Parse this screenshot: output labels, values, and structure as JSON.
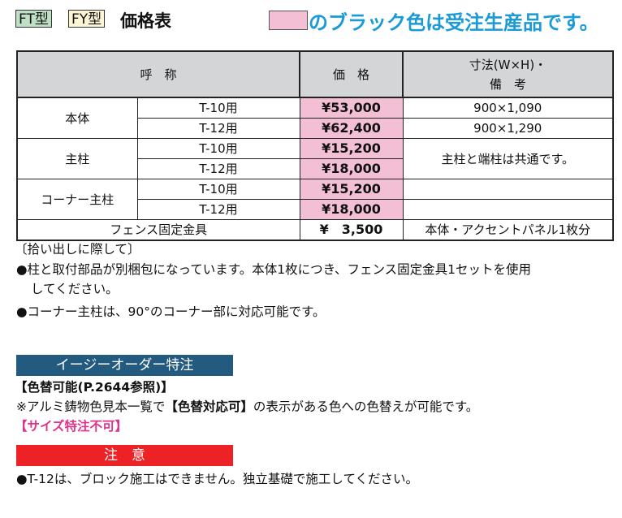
{
  "title": {
    "ft": "FT型",
    "fy": "FY型",
    "main": "価格表",
    "note": "のブラック色は受注生産品です。",
    "pink": "#f2bfd5",
    "blue": "#1a9ad6"
  },
  "table": {
    "headers": {
      "name": "呼　称",
      "price": "価　格",
      "notes1": "寸法(W×H)・",
      "notes2": "備　考"
    },
    "rows": [
      {
        "group": "本体",
        "type": "T-10用",
        "price": "¥53,000",
        "note": "900×1,090"
      },
      {
        "type": "T-12用",
        "price": "¥62,400",
        "note": "900×1,290"
      },
      {
        "group": "主柱",
        "type": "T-10用",
        "price": "¥15,200",
        "note": "主柱と端柱は共通です。"
      },
      {
        "type": "T-12用",
        "price": "¥18,000"
      },
      {
        "group": "コーナー主柱",
        "type": "T-10用",
        "price": "¥15,200",
        "note": ""
      },
      {
        "type": "T-12用",
        "price": "¥18,000",
        "note": ""
      },
      {
        "group": "フェンス固定金具",
        "price": "¥　3,500",
        "note": "本体・アクセントパネル1枚分"
      }
    ]
  },
  "notes": {
    "heading": "〔拾い出しに際して〕",
    "n1a": "●柱と取付部品が別梱包になっています。本体1枚につき、フェンス固定金具1セットを使用",
    "n1b": "してください。",
    "n2": "●コーナー主柱は、90°のコーナー部に対応可能です。"
  },
  "easy": {
    "title": "イージーオーダー特注",
    "sub": "【色替可能(P.2644参照)】",
    "text1": "※アルミ鋳物色見本一覧で",
    "text2": "【色替対応可】",
    "text3": "の表示がある色への色替えが可能です。",
    "nosize": "【サイズ特注不可】"
  },
  "caution": {
    "title": "注　意",
    "text": "●T-12は、ブロック施工はできません。独立基礎で施工してください。"
  }
}
